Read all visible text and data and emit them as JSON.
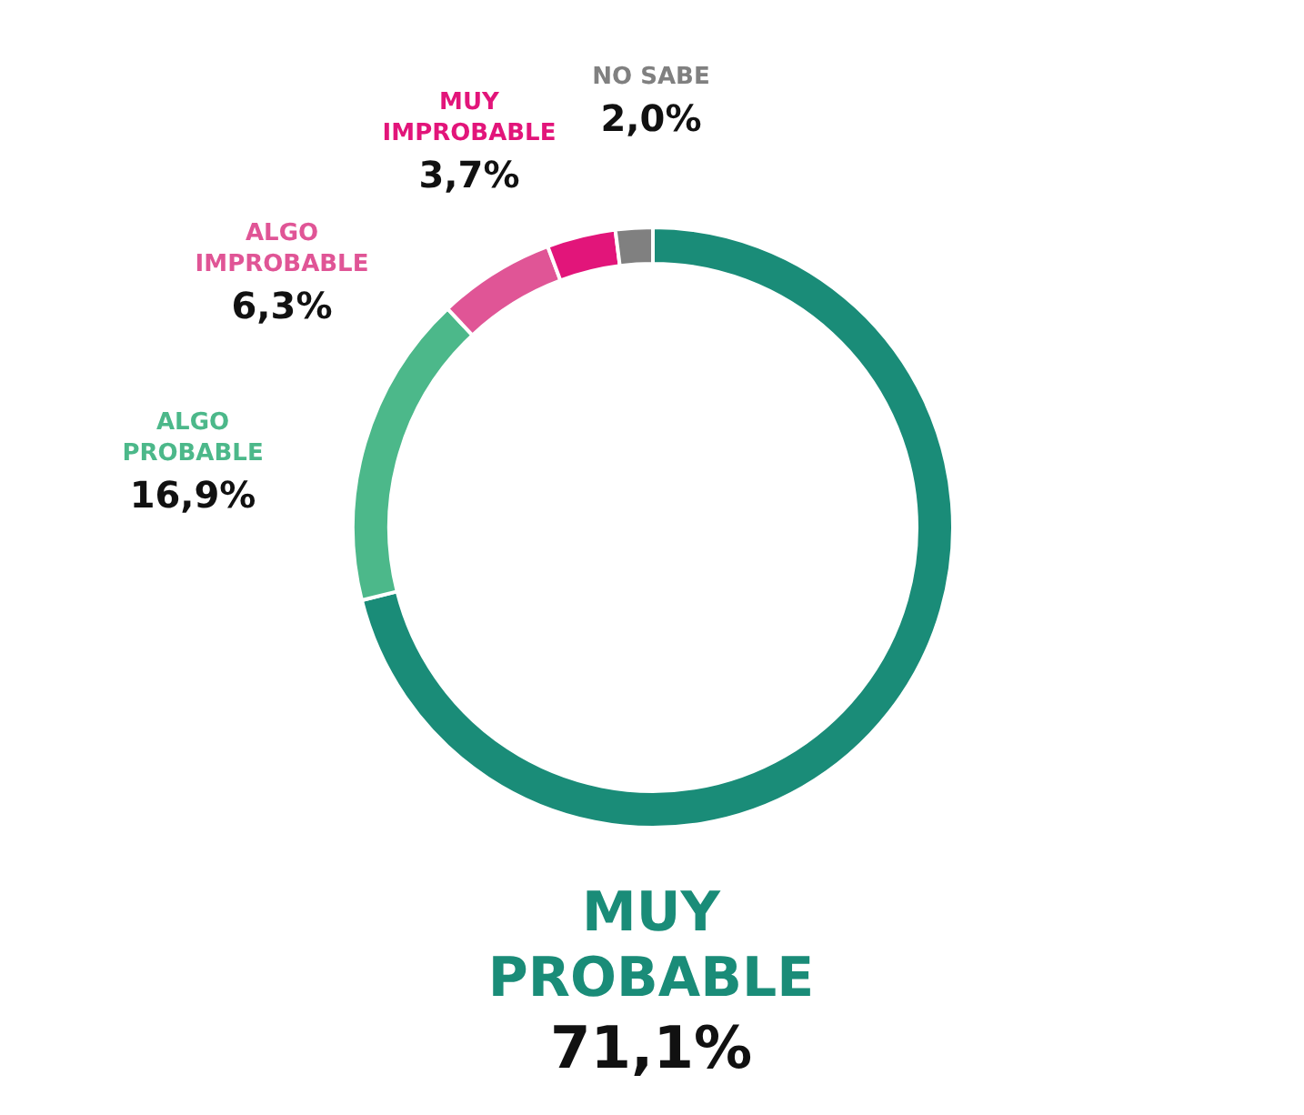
{
  "chart_data": {
    "type": "donut",
    "categories": [
      "MUY PROBABLE",
      "ALGO PROBABLE",
      "ALGO IMPROBABLE",
      "MUY IMPROBABLE",
      "NO SABE"
    ],
    "values": [
      71.1,
      16.9,
      6.3,
      3.7,
      2.0
    ],
    "colors": [
      "#1a8c78",
      "#4cb88a",
      "#e05596",
      "#e2157a",
      "#808080"
    ],
    "value_labels": [
      "71,1%",
      "16,9%",
      "6,3%",
      "3,7%",
      "2,0%"
    ],
    "data_labels": true,
    "legend": false
  }
}
